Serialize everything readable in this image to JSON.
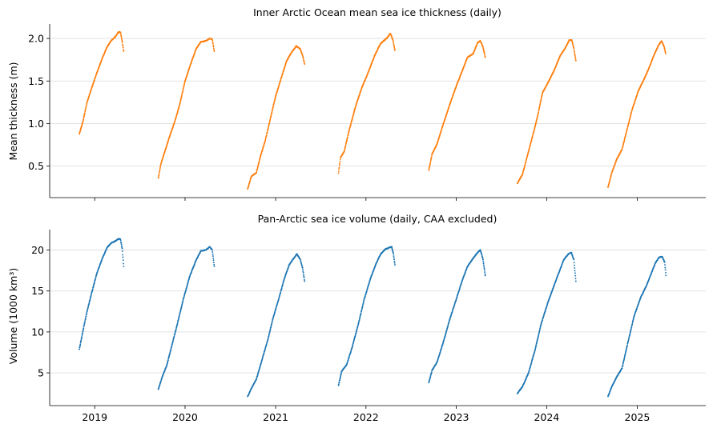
{
  "chart_data": [
    {
      "type": "scatter",
      "title": "Inner Arctic Ocean mean sea ice thickness (daily)",
      "xlabel": "",
      "ylabel": "Mean thickness (m)",
      "x_axis": "date",
      "x_ticks": [
        "2019",
        "2020",
        "2021",
        "2022",
        "2023",
        "2024",
        "2025"
      ],
      "ylim": [
        0.13,
        2.17
      ],
      "y_ticks": [
        "0.5",
        "1.0",
        "1.5",
        "2.0"
      ],
      "grid": "horizontal",
      "color": "#ff7f0e",
      "seasons": [
        {
          "start": "2018-10-31",
          "points": [
            [
              "2018-10-31",
              0.88
            ],
            [
              "2018-11-15",
              1.03
            ],
            [
              "2018-12-01",
              1.25
            ],
            [
              "2018-12-20",
              1.42
            ],
            [
              "2019-01-10",
              1.6
            ],
            [
              "2019-02-01",
              1.77
            ],
            [
              "2019-02-20",
              1.9
            ],
            [
              "2019-03-10",
              1.98
            ],
            [
              "2019-03-25",
              2.02
            ],
            [
              "2019-04-08",
              2.08
            ],
            [
              "2019-04-15",
              2.07
            ],
            [
              "2019-04-22",
              1.97
            ],
            [
              "2019-04-28",
              1.85
            ]
          ]
        },
        {
          "start": "2019-09-15",
          "points": [
            [
              "2019-09-15",
              0.36
            ],
            [
              "2019-09-25",
              0.52
            ],
            [
              "2019-10-10",
              0.66
            ],
            [
              "2019-11-01",
              0.86
            ],
            [
              "2019-11-20",
              1.02
            ],
            [
              "2019-12-10",
              1.22
            ],
            [
              "2020-01-01",
              1.5
            ],
            [
              "2020-01-25",
              1.71
            ],
            [
              "2020-02-15",
              1.88
            ],
            [
              "2020-03-05",
              1.96
            ],
            [
              "2020-03-25",
              1.97
            ],
            [
              "2020-04-10",
              2.0
            ],
            [
              "2020-04-20",
              1.99
            ],
            [
              "2020-04-28",
              1.85
            ]
          ]
        },
        {
          "start": "2020-09-10",
          "points": [
            [
              "2020-09-10",
              0.23
            ],
            [
              "2020-09-25",
              0.38
            ],
            [
              "2020-10-15",
              0.42
            ],
            [
              "2020-11-01",
              0.62
            ],
            [
              "2020-11-20",
              0.8
            ],
            [
              "2020-12-10",
              1.05
            ],
            [
              "2021-01-01",
              1.32
            ],
            [
              "2021-01-25",
              1.55
            ],
            [
              "2021-02-15",
              1.74
            ],
            [
              "2021-03-05",
              1.83
            ],
            [
              "2021-03-25",
              1.91
            ],
            [
              "2021-04-10",
              1.88
            ],
            [
              "2021-04-20",
              1.8
            ],
            [
              "2021-04-28",
              1.7
            ]
          ]
        },
        {
          "start": "2021-09-12",
          "points": [
            [
              "2021-09-12",
              0.42
            ],
            [
              "2021-09-20",
              0.6
            ],
            [
              "2021-10-05",
              0.67
            ],
            [
              "2021-10-25",
              0.92
            ],
            [
              "2021-11-20",
              1.2
            ],
            [
              "2021-12-15",
              1.42
            ],
            [
              "2022-01-10",
              1.6
            ],
            [
              "2022-02-05",
              1.8
            ],
            [
              "2022-03-01",
              1.94
            ],
            [
              "2022-03-25",
              2.0
            ],
            [
              "2022-04-10",
              2.06
            ],
            [
              "2022-04-20",
              1.98
            ],
            [
              "2022-04-28",
              1.86
            ]
          ]
        },
        {
          "start": "2022-09-12",
          "points": [
            [
              "2022-09-12",
              0.45
            ],
            [
              "2022-09-25",
              0.64
            ],
            [
              "2022-10-15",
              0.76
            ],
            [
              "2022-11-10",
              1.0
            ],
            [
              "2022-12-05",
              1.22
            ],
            [
              "2023-01-01",
              1.44
            ],
            [
              "2023-01-25",
              1.62
            ],
            [
              "2023-02-15",
              1.78
            ],
            [
              "2023-03-10",
              1.82
            ],
            [
              "2023-03-28",
              1.95
            ],
            [
              "2023-04-08",
              1.97
            ],
            [
              "2023-04-18",
              1.91
            ],
            [
              "2023-04-28",
              1.78
            ]
          ]
        },
        {
          "start": "2023-09-05",
          "points": [
            [
              "2023-09-05",
              0.3
            ],
            [
              "2023-09-25",
              0.4
            ],
            [
              "2023-10-15",
              0.62
            ],
            [
              "2023-11-05",
              0.85
            ],
            [
              "2023-11-25",
              1.08
            ],
            [
              "2023-12-15",
              1.36
            ],
            [
              "2024-01-10",
              1.5
            ],
            [
              "2024-02-01",
              1.63
            ],
            [
              "2024-02-25",
              1.8
            ],
            [
              "2024-03-15",
              1.88
            ],
            [
              "2024-04-01",
              1.98
            ],
            [
              "2024-04-12",
              1.98
            ],
            [
              "2024-04-20",
              1.88
            ],
            [
              "2024-04-28",
              1.74
            ]
          ]
        },
        {
          "start": "2024-09-05",
          "points": [
            [
              "2024-09-05",
              0.25
            ],
            [
              "2024-09-20",
              0.42
            ],
            [
              "2024-10-10",
              0.58
            ],
            [
              "2024-11-01",
              0.7
            ],
            [
              "2024-11-20",
              0.92
            ],
            [
              "2024-12-10",
              1.15
            ],
            [
              "2025-01-05",
              1.38
            ],
            [
              "2025-01-30",
              1.53
            ],
            [
              "2025-02-20",
              1.67
            ],
            [
              "2025-03-12",
              1.82
            ],
            [
              "2025-03-30",
              1.93
            ],
            [
              "2025-04-10",
              1.97
            ],
            [
              "2025-04-20",
              1.9
            ],
            [
              "2025-04-26",
              1.82
            ]
          ]
        }
      ]
    },
    {
      "type": "scatter",
      "title": "Pan-Arctic sea ice volume (daily, CAA excluded)",
      "xlabel": "",
      "ylabel": "Volume (1000 km³)",
      "x_axis": "date",
      "x_ticks": [
        "2019",
        "2020",
        "2021",
        "2022",
        "2023",
        "2024",
        "2025"
      ],
      "ylim": [
        1.0,
        22.5
      ],
      "y_ticks": [
        "5",
        "10",
        "15",
        "20"
      ],
      "grid": "horizontal",
      "color": "#1f77b4",
      "seasons": [
        {
          "start": "2018-10-31",
          "points": [
            [
              "2018-10-31",
              7.9
            ],
            [
              "2018-11-15",
              10.2
            ],
            [
              "2018-12-01",
              12.5
            ],
            [
              "2018-12-20",
              14.8
            ],
            [
              "2019-01-10",
              17.2
            ],
            [
              "2019-02-01",
              19.0
            ],
            [
              "2019-02-20",
              20.3
            ],
            [
              "2019-03-10",
              20.9
            ],
            [
              "2019-03-25",
              21.1
            ],
            [
              "2019-04-08",
              21.4
            ],
            [
              "2019-04-15",
              21.3
            ],
            [
              "2019-04-22",
              20.2
            ],
            [
              "2019-04-28",
              18.0
            ]
          ]
        },
        {
          "start": "2019-09-15",
          "points": [
            [
              "2019-09-15",
              3.0
            ],
            [
              "2019-10-01",
              4.5
            ],
            [
              "2019-10-20",
              6.0
            ],
            [
              "2019-11-10",
              8.5
            ],
            [
              "2019-12-01",
              11.0
            ],
            [
              "2019-12-25",
              14.0
            ],
            [
              "2020-01-20",
              16.8
            ],
            [
              "2020-02-15",
              18.8
            ],
            [
              "2020-03-05",
              19.9
            ],
            [
              "2020-03-25",
              20.0
            ],
            [
              "2020-04-10",
              20.4
            ],
            [
              "2020-04-20",
              20.0
            ],
            [
              "2020-04-28",
              18.0
            ]
          ]
        },
        {
          "start": "2020-09-10",
          "points": [
            [
              "2020-09-10",
              2.1
            ],
            [
              "2020-09-25",
              3.1
            ],
            [
              "2020-10-15",
              4.2
            ],
            [
              "2020-11-05",
              6.4
            ],
            [
              "2020-11-30",
              9.0
            ],
            [
              "2020-12-20",
              11.5
            ],
            [
              "2021-01-15",
              14.2
            ],
            [
              "2021-02-05",
              16.5
            ],
            [
              "2021-02-25",
              18.2
            ],
            [
              "2021-03-15",
              19.0
            ],
            [
              "2021-03-28",
              19.5
            ],
            [
              "2021-04-10",
              18.9
            ],
            [
              "2021-04-20",
              17.8
            ],
            [
              "2021-04-28",
              16.2
            ]
          ]
        },
        {
          "start": "2021-09-12",
          "points": [
            [
              "2021-09-12",
              3.5
            ],
            [
              "2021-09-25",
              5.2
            ],
            [
              "2021-10-15",
              6.0
            ],
            [
              "2021-11-05",
              8.0
            ],
            [
              "2021-11-30",
              10.8
            ],
            [
              "2021-12-25",
              14.0
            ],
            [
              "2022-01-20",
              16.6
            ],
            [
              "2022-02-10",
              18.3
            ],
            [
              "2022-03-01",
              19.5
            ],
            [
              "2022-03-20",
              20.1
            ],
            [
              "2022-04-05",
              20.3
            ],
            [
              "2022-04-15",
              20.4
            ],
            [
              "2022-04-22",
              19.5
            ],
            [
              "2022-04-28",
              18.2
            ]
          ]
        },
        {
          "start": "2022-09-12",
          "points": [
            [
              "2022-09-12",
              3.8
            ],
            [
              "2022-09-25",
              5.3
            ],
            [
              "2022-10-15",
              6.3
            ],
            [
              "2022-11-10",
              8.8
            ],
            [
              "2022-12-05",
              11.5
            ],
            [
              "2023-01-01",
              14.0
            ],
            [
              "2023-01-25",
              16.3
            ],
            [
              "2023-02-15",
              18.0
            ],
            [
              "2023-03-10",
              19.0
            ],
            [
              "2023-03-28",
              19.7
            ],
            [
              "2023-04-08",
              20.0
            ],
            [
              "2023-04-18",
              19.0
            ],
            [
              "2023-04-28",
              16.9
            ]
          ]
        },
        {
          "start": "2023-09-05",
          "points": [
            [
              "2023-09-05",
              2.5
            ],
            [
              "2023-09-25",
              3.3
            ],
            [
              "2023-10-20",
              5.0
            ],
            [
              "2023-11-15",
              7.8
            ],
            [
              "2023-12-10",
              11.0
            ],
            [
              "2024-01-05",
              13.5
            ],
            [
              "2024-01-30",
              15.6
            ],
            [
              "2024-02-20",
              17.3
            ],
            [
              "2024-03-10",
              18.8
            ],
            [
              "2024-03-28",
              19.5
            ],
            [
              "2024-04-10",
              19.7
            ],
            [
              "2024-04-20",
              18.8
            ],
            [
              "2024-04-28",
              16.2
            ]
          ]
        },
        {
          "start": "2024-09-05",
          "points": [
            [
              "2024-09-05",
              2.1
            ],
            [
              "2024-09-20",
              3.3
            ],
            [
              "2024-10-10",
              4.5
            ],
            [
              "2024-11-01",
              5.6
            ],
            [
              "2024-11-25",
              8.8
            ],
            [
              "2024-12-20",
              12.0
            ],
            [
              "2025-01-15",
              14.2
            ],
            [
              "2025-02-05",
              15.5
            ],
            [
              "2025-02-25",
              17.0
            ],
            [
              "2025-03-15",
              18.4
            ],
            [
              "2025-03-30",
              19.1
            ],
            [
              "2025-04-12",
              19.2
            ],
            [
              "2025-04-22",
              18.5
            ],
            [
              "2025-04-27",
              16.9
            ]
          ]
        }
      ]
    }
  ]
}
